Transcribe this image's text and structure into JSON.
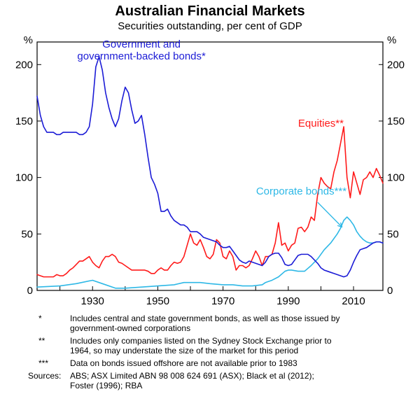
{
  "title": "Australian Financial Markets",
  "subtitle": "Securities outstanding, per cent of GDP",
  "y_axis": {
    "unit_symbol": "%",
    "min": 0,
    "max": 220,
    "tick_step": 50,
    "tick_labels": [
      "0",
      "50",
      "100",
      "150",
      "200"
    ]
  },
  "x_axis": {
    "min": 1913,
    "max": 2019,
    "tick_positions": [
      1930,
      1950,
      1970,
      1990,
      2010
    ],
    "tick_labels": [
      "1930",
      "1950",
      "1970",
      "1990",
      "2010"
    ]
  },
  "colors": {
    "gov_bonds": "#1c1cd6",
    "equities": "#ff1a1a",
    "corporate_bonds": "#2eb8e6",
    "axis": "#000000",
    "background": "#ffffff"
  },
  "line_width": 1.6,
  "series_labels": {
    "gov_bonds": "Government and\ngovernment-backed bonds*",
    "equities": "Equities**",
    "corporate_bonds": "Corporate bonds***"
  },
  "series": {
    "gov_bonds": [
      [
        1913,
        172
      ],
      [
        1914,
        155
      ],
      [
        1915,
        145
      ],
      [
        1916,
        140
      ],
      [
        1917,
        140
      ],
      [
        1918,
        140
      ],
      [
        1919,
        138
      ],
      [
        1920,
        138
      ],
      [
        1921,
        140
      ],
      [
        1922,
        140
      ],
      [
        1923,
        140
      ],
      [
        1924,
        140
      ],
      [
        1925,
        140
      ],
      [
        1926,
        138
      ],
      [
        1927,
        138
      ],
      [
        1928,
        140
      ],
      [
        1929,
        145
      ],
      [
        1930,
        165
      ],
      [
        1931,
        198
      ],
      [
        1932,
        207
      ],
      [
        1933,
        195
      ],
      [
        1934,
        175
      ],
      [
        1935,
        162
      ],
      [
        1936,
        152
      ],
      [
        1937,
        145
      ],
      [
        1938,
        152
      ],
      [
        1939,
        168
      ],
      [
        1940,
        180
      ],
      [
        1941,
        175
      ],
      [
        1942,
        160
      ],
      [
        1943,
        148
      ],
      [
        1944,
        150
      ],
      [
        1945,
        155
      ],
      [
        1946,
        138
      ],
      [
        1947,
        118
      ],
      [
        1948,
        100
      ],
      [
        1949,
        94
      ],
      [
        1950,
        86
      ],
      [
        1951,
        70
      ],
      [
        1952,
        70
      ],
      [
        1953,
        72
      ],
      [
        1954,
        66
      ],
      [
        1955,
        62
      ],
      [
        1956,
        60
      ],
      [
        1957,
        58
      ],
      [
        1958,
        58
      ],
      [
        1959,
        56
      ],
      [
        1960,
        52
      ],
      [
        1961,
        52
      ],
      [
        1962,
        52
      ],
      [
        1963,
        50
      ],
      [
        1964,
        47
      ],
      [
        1965,
        46
      ],
      [
        1966,
        45
      ],
      [
        1967,
        44
      ],
      [
        1968,
        43
      ],
      [
        1969,
        40
      ],
      [
        1970,
        38
      ],
      [
        1971,
        38
      ],
      [
        1972,
        39
      ],
      [
        1973,
        35
      ],
      [
        1974,
        31
      ],
      [
        1975,
        27
      ],
      [
        1976,
        25
      ],
      [
        1977,
        24
      ],
      [
        1978,
        26
      ],
      [
        1979,
        25
      ],
      [
        1980,
        24
      ],
      [
        1981,
        23
      ],
      [
        1982,
        22
      ],
      [
        1983,
        25
      ],
      [
        1984,
        30
      ],
      [
        1985,
        32
      ],
      [
        1986,
        33
      ],
      [
        1987,
        33
      ],
      [
        1988,
        29
      ],
      [
        1989,
        23
      ],
      [
        1990,
        22
      ],
      [
        1991,
        23
      ],
      [
        1992,
        27
      ],
      [
        1993,
        31
      ],
      [
        1994,
        32
      ],
      [
        1995,
        32
      ],
      [
        1996,
        32
      ],
      [
        1997,
        30
      ],
      [
        1998,
        27
      ],
      [
        1999,
        24
      ],
      [
        2000,
        20
      ],
      [
        2001,
        18
      ],
      [
        2002,
        17
      ],
      [
        2003,
        16
      ],
      [
        2004,
        15
      ],
      [
        2005,
        14
      ],
      [
        2006,
        13
      ],
      [
        2007,
        12
      ],
      [
        2008,
        13
      ],
      [
        2009,
        18
      ],
      [
        2010,
        25
      ],
      [
        2011,
        31
      ],
      [
        2012,
        36
      ],
      [
        2013,
        37
      ],
      [
        2014,
        38
      ],
      [
        2015,
        40
      ],
      [
        2016,
        42
      ],
      [
        2017,
        43
      ],
      [
        2018,
        43
      ],
      [
        2019,
        42
      ]
    ],
    "equities": [
      [
        1913,
        14
      ],
      [
        1914,
        13
      ],
      [
        1915,
        12
      ],
      [
        1916,
        12
      ],
      [
        1917,
        12
      ],
      [
        1918,
        12
      ],
      [
        1919,
        14
      ],
      [
        1920,
        13
      ],
      [
        1921,
        13
      ],
      [
        1922,
        15
      ],
      [
        1923,
        18
      ],
      [
        1924,
        20
      ],
      [
        1925,
        23
      ],
      [
        1926,
        26
      ],
      [
        1927,
        26
      ],
      [
        1928,
        28
      ],
      [
        1929,
        30
      ],
      [
        1930,
        25
      ],
      [
        1931,
        22
      ],
      [
        1932,
        20
      ],
      [
        1933,
        26
      ],
      [
        1934,
        30
      ],
      [
        1935,
        30
      ],
      [
        1936,
        32
      ],
      [
        1937,
        30
      ],
      [
        1938,
        25
      ],
      [
        1939,
        24
      ],
      [
        1940,
        22
      ],
      [
        1941,
        20
      ],
      [
        1942,
        18
      ],
      [
        1943,
        18
      ],
      [
        1944,
        18
      ],
      [
        1945,
        18
      ],
      [
        1946,
        18
      ],
      [
        1947,
        17
      ],
      [
        1948,
        15
      ],
      [
        1949,
        15
      ],
      [
        1950,
        18
      ],
      [
        1951,
        20
      ],
      [
        1952,
        18
      ],
      [
        1953,
        18
      ],
      [
        1954,
        22
      ],
      [
        1955,
        25
      ],
      [
        1956,
        24
      ],
      [
        1957,
        25
      ],
      [
        1958,
        30
      ],
      [
        1959,
        40
      ],
      [
        1960,
        50
      ],
      [
        1961,
        42
      ],
      [
        1962,
        40
      ],
      [
        1963,
        45
      ],
      [
        1964,
        38
      ],
      [
        1965,
        30
      ],
      [
        1966,
        28
      ],
      [
        1967,
        32
      ],
      [
        1968,
        45
      ],
      [
        1969,
        42
      ],
      [
        1970,
        30
      ],
      [
        1971,
        28
      ],
      [
        1972,
        35
      ],
      [
        1973,
        30
      ],
      [
        1974,
        18
      ],
      [
        1975,
        22
      ],
      [
        1976,
        22
      ],
      [
        1977,
        20
      ],
      [
        1978,
        22
      ],
      [
        1979,
        28
      ],
      [
        1980,
        35
      ],
      [
        1981,
        30
      ],
      [
        1982,
        22
      ],
      [
        1983,
        30
      ],
      [
        1984,
        30
      ],
      [
        1985,
        32
      ],
      [
        1986,
        42
      ],
      [
        1987,
        60
      ],
      [
        1988,
        40
      ],
      [
        1989,
        42
      ],
      [
        1990,
        35
      ],
      [
        1991,
        40
      ],
      [
        1992,
        42
      ],
      [
        1993,
        55
      ],
      [
        1994,
        56
      ],
      [
        1995,
        52
      ],
      [
        1996,
        56
      ],
      [
        1997,
        65
      ],
      [
        1998,
        62
      ],
      [
        1999,
        85
      ],
      [
        2000,
        100
      ],
      [
        2001,
        95
      ],
      [
        2002,
        92
      ],
      [
        2003,
        90
      ],
      [
        2004,
        105
      ],
      [
        2005,
        115
      ],
      [
        2006,
        130
      ],
      [
        2007,
        145
      ],
      [
        2008,
        100
      ],
      [
        2009,
        82
      ],
      [
        2010,
        105
      ],
      [
        2011,
        95
      ],
      [
        2012,
        85
      ],
      [
        2013,
        98
      ],
      [
        2014,
        100
      ],
      [
        2015,
        105
      ],
      [
        2016,
        100
      ],
      [
        2017,
        108
      ],
      [
        2018,
        102
      ],
      [
        2019,
        95
      ]
    ],
    "corporate_bonds": [
      [
        1913,
        3
      ],
      [
        1920,
        4
      ],
      [
        1925,
        6
      ],
      [
        1930,
        9
      ],
      [
        1933,
        6
      ],
      [
        1937,
        2
      ],
      [
        1940,
        2
      ],
      [
        1945,
        3
      ],
      [
        1950,
        4
      ],
      [
        1955,
        5
      ],
      [
        1958,
        7
      ],
      [
        1960,
        7
      ],
      [
        1963,
        7
      ],
      [
        1966,
        6
      ],
      [
        1970,
        5
      ],
      [
        1973,
        5
      ],
      [
        1976,
        4
      ],
      [
        1979,
        4
      ],
      [
        1982,
        5
      ],
      [
        1983,
        7
      ],
      [
        1985,
        9
      ],
      [
        1987,
        12
      ],
      [
        1989,
        17
      ],
      [
        1990,
        18
      ],
      [
        1991,
        18
      ],
      [
        1993,
        17
      ],
      [
        1995,
        17
      ],
      [
        1997,
        22
      ],
      [
        1999,
        28
      ],
      [
        2001,
        36
      ],
      [
        2003,
        42
      ],
      [
        2005,
        50
      ],
      [
        2006,
        55
      ],
      [
        2007,
        62
      ],
      [
        2008,
        65
      ],
      [
        2009,
        62
      ],
      [
        2010,
        58
      ],
      [
        2011,
        52
      ],
      [
        2012,
        48
      ],
      [
        2013,
        45
      ],
      [
        2014,
        43
      ],
      [
        2015,
        42
      ],
      [
        2016,
        42
      ],
      [
        2017,
        43
      ],
      [
        2018,
        43
      ],
      [
        2019,
        42
      ]
    ]
  },
  "arrow": {
    "from_year": 1999,
    "from_val": 78,
    "to_year": 2006.5,
    "to_val": 56
  },
  "footnotes": [
    {
      "sym": "*",
      "text": "Includes central and state government bonds, as well as those issued by government-owned corporations"
    },
    {
      "sym": "**",
      "text": "Includes only companies listed on the Sydney Stock Exchange prior to 1964, so may understate the size of the market for this period"
    },
    {
      "sym": "***",
      "text": "Data on bonds issued offshore are not available prior to 1983"
    }
  ],
  "sources_label": "Sources:",
  "sources_text": "ABS; ASX Limited ABN 98 008 624 691 (ASX); Black et al (2012); Foster (1996); RBA"
}
